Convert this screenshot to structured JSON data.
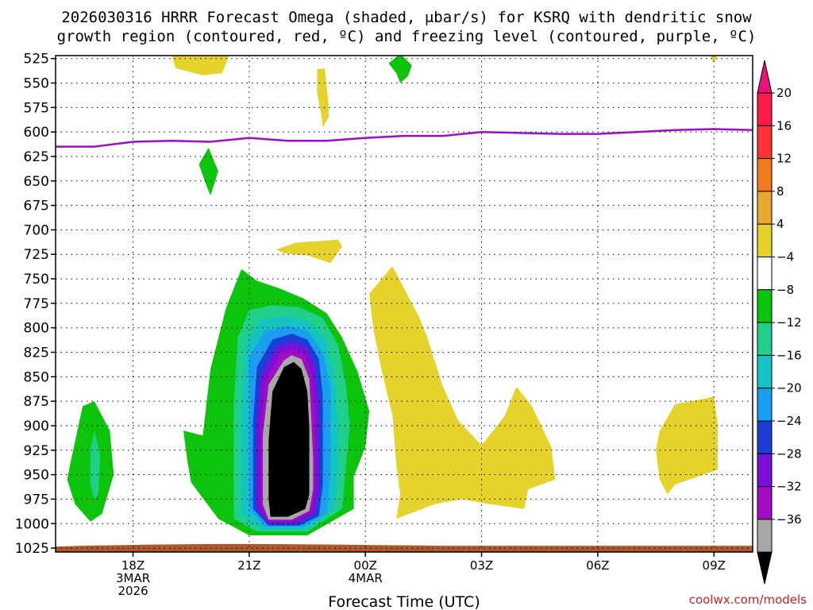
{
  "chart_data": {
    "type": "heatmap",
    "title_lines": [
      "2026030316 HRRR Forecast Omega (shaded, μbar/s) for KSRQ with dendritic snow",
      "growth region (contoured, red, ºC) and freezing level (contoured, purple, ºC)"
    ],
    "xlabel": "Forecast Time (UTC)",
    "credit": "coolwx.com/models",
    "x_ticks": [
      {
        "hour": 18,
        "lines": [
          "18Z",
          "3MAR",
          "2026"
        ]
      },
      {
        "hour": 21,
        "lines": [
          "21Z"
        ]
      },
      {
        "hour": 24,
        "lines": [
          "00Z",
          "4MAR"
        ]
      },
      {
        "hour": 27,
        "lines": [
          "03Z"
        ]
      },
      {
        "hour": 30,
        "lines": [
          "06Z"
        ]
      },
      {
        "hour": 33,
        "lines": [
          "09Z"
        ]
      }
    ],
    "x_range_hours": [
      16,
      34
    ],
    "y_ticks": [
      525,
      550,
      575,
      600,
      625,
      650,
      675,
      700,
      725,
      750,
      775,
      800,
      825,
      850,
      875,
      900,
      925,
      950,
      975,
      1000,
      1025
    ],
    "y_range_hPa": [
      522,
      1029
    ],
    "colorbar": {
      "labels": [
        "20",
        "16",
        "12",
        "8",
        "4",
        "−4",
        "−8",
        "−12",
        "−16",
        "−20",
        "−24",
        "−28",
        "−32",
        "−36"
      ],
      "colors": [
        "#ff1a4d",
        "#ff3333",
        "#f47a1f",
        "#e8a832",
        "#e5d22a",
        "#ffffff",
        "#0dc40d",
        "#1fcf8a",
        "#14c4c4",
        "#1a9ef0",
        "#1e3cd6",
        "#7a0fd6",
        "#a30cc4",
        "#a8a8a8"
      ],
      "top_color": "#e8127a",
      "bottom_color": "#000000"
    },
    "freezing_level": {
      "color": "#9a0fc4",
      "points": [
        [
          16,
          615
        ],
        [
          17,
          615
        ],
        [
          18,
          610
        ],
        [
          19,
          609
        ],
        [
          20,
          610
        ],
        [
          21,
          606
        ],
        [
          22,
          609
        ],
        [
          23,
          609
        ],
        [
          24,
          606
        ],
        [
          25,
          604
        ],
        [
          26,
          604
        ],
        [
          27,
          600
        ],
        [
          28,
          601
        ],
        [
          29,
          602
        ],
        [
          30,
          602
        ],
        [
          31,
          600
        ],
        [
          32,
          598
        ],
        [
          33,
          597
        ],
        [
          34,
          598
        ]
      ]
    },
    "surface_color": "#b0582d",
    "regions": [
      {
        "color": "#0dc40d",
        "points": [
          [
            19.8,
            910
          ],
          [
            20.0,
            842
          ],
          [
            20.4,
            780
          ],
          [
            20.8,
            740
          ],
          [
            21.2,
            752
          ],
          [
            21.8,
            760
          ],
          [
            22.4,
            770
          ],
          [
            23.0,
            785
          ],
          [
            23.4,
            810
          ],
          [
            23.8,
            845
          ],
          [
            24.1,
            885
          ],
          [
            24.0,
            922
          ],
          [
            23.7,
            952
          ],
          [
            23.7,
            985
          ],
          [
            22.5,
            1012
          ],
          [
            21.0,
            1012
          ],
          [
            20.2,
            995
          ],
          [
            19.5,
            958
          ],
          [
            19.4,
            935
          ],
          [
            19.3,
            905
          ]
        ]
      },
      {
        "color": "#1fcf8a",
        "points": [
          [
            20.6,
            880
          ],
          [
            20.7,
            810
          ],
          [
            21.0,
            782
          ],
          [
            21.6,
            777
          ],
          [
            22.3,
            779
          ],
          [
            22.9,
            790
          ],
          [
            23.3,
            818
          ],
          [
            23.5,
            860
          ],
          [
            23.6,
            900
          ],
          [
            23.5,
            940
          ],
          [
            23.4,
            985
          ],
          [
            22.5,
            1008
          ],
          [
            21.2,
            1008
          ],
          [
            20.6,
            995
          ]
        ]
      },
      {
        "color": "#14c4c4",
        "points": [
          [
            20.8,
            880
          ],
          [
            20.9,
            815
          ],
          [
            21.3,
            792
          ],
          [
            21.9,
            788
          ],
          [
            22.5,
            793
          ],
          [
            23.0,
            812
          ],
          [
            23.2,
            850
          ],
          [
            23.3,
            900
          ],
          [
            23.3,
            945
          ],
          [
            23.2,
            985
          ],
          [
            22.5,
            1006
          ],
          [
            21.3,
            1006
          ],
          [
            20.8,
            990
          ]
        ]
      },
      {
        "color": "#1a9ef0",
        "points": [
          [
            21.0,
            890
          ],
          [
            21.0,
            830
          ],
          [
            21.4,
            803
          ],
          [
            22.0,
            798
          ],
          [
            22.5,
            803
          ],
          [
            22.9,
            825
          ],
          [
            23.1,
            860
          ],
          [
            23.1,
            910
          ],
          [
            23.1,
            950
          ],
          [
            23.0,
            990
          ],
          [
            22.4,
            1003
          ],
          [
            21.4,
            1003
          ],
          [
            21.0,
            985
          ]
        ]
      },
      {
        "color": "#1e3cd6",
        "points": [
          [
            21.1,
            895
          ],
          [
            21.2,
            840
          ],
          [
            21.6,
            812
          ],
          [
            22.1,
            806
          ],
          [
            22.5,
            812
          ],
          [
            22.8,
            832
          ],
          [
            22.9,
            870
          ],
          [
            22.9,
            920
          ],
          [
            22.9,
            960
          ],
          [
            22.8,
            992
          ],
          [
            22.3,
            1002
          ],
          [
            21.5,
            1002
          ],
          [
            21.1,
            985
          ]
        ]
      },
      {
        "color": "#7a0fd6",
        "points": [
          [
            21.2,
            900
          ],
          [
            21.3,
            850
          ],
          [
            21.7,
            820
          ],
          [
            22.1,
            814
          ],
          [
            22.5,
            820
          ],
          [
            22.7,
            840
          ],
          [
            22.8,
            880
          ],
          [
            22.8,
            925
          ],
          [
            22.8,
            965
          ],
          [
            22.7,
            990
          ],
          [
            22.2,
            1000
          ],
          [
            21.5,
            1000
          ],
          [
            21.2,
            985
          ]
        ]
      },
      {
        "color": "#a30cc4",
        "points": [
          [
            21.3,
            905
          ],
          [
            21.4,
            855
          ],
          [
            21.8,
            827
          ],
          [
            22.1,
            821
          ],
          [
            22.4,
            826
          ],
          [
            22.6,
            845
          ],
          [
            22.7,
            885
          ],
          [
            22.7,
            930
          ],
          [
            22.7,
            965
          ],
          [
            22.6,
            988
          ],
          [
            22.1,
            998
          ],
          [
            21.5,
            998
          ],
          [
            21.3,
            982
          ]
        ]
      },
      {
        "color": "#a8a8a8",
        "points": [
          [
            21.35,
            910
          ],
          [
            21.5,
            858
          ],
          [
            21.9,
            833
          ],
          [
            22.1,
            828
          ],
          [
            22.35,
            832
          ],
          [
            22.55,
            852
          ],
          [
            22.6,
            890
          ],
          [
            22.65,
            935
          ],
          [
            22.65,
            965
          ],
          [
            22.55,
            987
          ],
          [
            22.1,
            996
          ],
          [
            21.5,
            996
          ],
          [
            21.35,
            980
          ]
        ]
      },
      {
        "color": "#000000",
        "points": [
          [
            21.5,
            915
          ],
          [
            21.6,
            865
          ],
          [
            21.9,
            840
          ],
          [
            22.15,
            835
          ],
          [
            22.35,
            842
          ],
          [
            22.5,
            865
          ],
          [
            22.55,
            900
          ],
          [
            22.55,
            940
          ],
          [
            22.55,
            970
          ],
          [
            22.45,
            985
          ],
          [
            22.0,
            993
          ],
          [
            21.55,
            993
          ],
          [
            21.5,
            975
          ]
        ]
      },
      {
        "color": "#0dc40d",
        "points": [
          [
            16.4,
            935
          ],
          [
            16.7,
            880
          ],
          [
            17.0,
            875
          ],
          [
            17.4,
            905
          ],
          [
            17.5,
            950
          ],
          [
            17.2,
            990
          ],
          [
            16.9,
            998
          ],
          [
            16.5,
            980
          ],
          [
            16.3,
            955
          ]
        ]
      },
      {
        "color": "#1fcf8a",
        "points": [
          [
            16.9,
            925
          ],
          [
            17.0,
            905
          ],
          [
            17.15,
            930
          ],
          [
            17.1,
            970
          ],
          [
            17.0,
            975
          ],
          [
            16.9,
            960
          ]
        ]
      },
      {
        "color": "#0dc40d",
        "points": [
          [
            19.7,
            633
          ],
          [
            19.95,
            616
          ],
          [
            20.2,
            640
          ],
          [
            20.0,
            665
          ],
          [
            19.85,
            650
          ]
        ]
      },
      {
        "color": "#0dc40d",
        "points": [
          [
            24.6,
            530
          ],
          [
            24.9,
            520
          ],
          [
            25.2,
            532
          ],
          [
            25.1,
            543
          ],
          [
            24.9,
            550
          ],
          [
            24.8,
            540
          ]
        ]
      },
      {
        "color": "#e5d22a",
        "points": [
          [
            19.0,
            520
          ],
          [
            20.5,
            520
          ],
          [
            20.3,
            540
          ],
          [
            19.8,
            542
          ],
          [
            19.1,
            535
          ]
        ]
      },
      {
        "color": "#e5d22a",
        "points": [
          [
            22.75,
            536
          ],
          [
            22.95,
            535
          ],
          [
            23.05,
            572
          ],
          [
            23.05,
            585
          ],
          [
            22.9,
            595
          ],
          [
            22.85,
            580
          ],
          [
            22.75,
            560
          ]
        ]
      },
      {
        "color": "#e5d22a",
        "points": [
          [
            21.7,
            720
          ],
          [
            22.2,
            713
          ],
          [
            23.3,
            710
          ],
          [
            23.4,
            717
          ],
          [
            23.1,
            734
          ],
          [
            22.5,
            726
          ],
          [
            21.9,
            724
          ]
        ]
      },
      {
        "color": "#e5d22a",
        "points": [
          [
            24.1,
            765
          ],
          [
            24.7,
            737
          ],
          [
            25.0,
            760
          ],
          [
            25.4,
            790
          ],
          [
            25.6,
            810
          ],
          [
            26.0,
            860
          ],
          [
            26.4,
            895
          ],
          [
            27.0,
            920
          ],
          [
            27.6,
            890
          ],
          [
            27.9,
            860
          ],
          [
            28.3,
            880
          ],
          [
            28.8,
            922
          ],
          [
            28.9,
            955
          ],
          [
            28.2,
            965
          ],
          [
            28.1,
            985
          ],
          [
            27.2,
            980
          ],
          [
            26.5,
            975
          ],
          [
            25.8,
            980
          ],
          [
            24.8,
            995
          ],
          [
            24.9,
            970
          ],
          [
            24.8,
            940
          ],
          [
            24.7,
            890
          ],
          [
            24.4,
            840
          ],
          [
            24.2,
            800
          ]
        ]
      },
      {
        "color": "#e5d22a",
        "points": [
          [
            31.6,
            905
          ],
          [
            32.0,
            878
          ],
          [
            32.8,
            872
          ],
          [
            33.0,
            870
          ],
          [
            33.1,
            900
          ],
          [
            33.1,
            945
          ],
          [
            32.0,
            960
          ],
          [
            31.8,
            970
          ],
          [
            31.6,
            955
          ],
          [
            31.5,
            925
          ]
        ]
      },
      {
        "color": "#e5d22a",
        "points": [
          [
            32.9,
            522
          ],
          [
            33.1,
            520
          ],
          [
            33.0,
            530
          ]
        ]
      }
    ]
  }
}
